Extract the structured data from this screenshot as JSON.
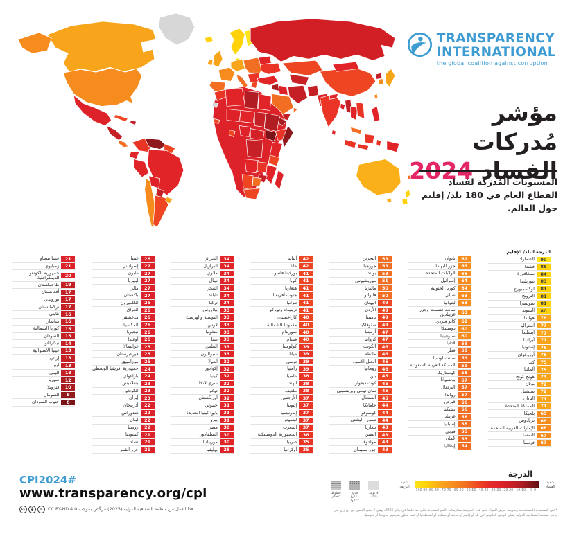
{
  "logo": {
    "line1": "TRANSPARENCY",
    "line2": "INTERNATIONAL",
    "tagline": "the global coalition against corruption",
    "brand_blue": "#3e9cd2"
  },
  "title": {
    "line1": "مؤشر مُدركات",
    "line2_word": "الفساد",
    "year": "2024",
    "year_color": "#e42566"
  },
  "subtitle": "المستويات المُدرَكة لفساد القطاع العام في 180 بلد/ إقليم حول العالم.",
  "list_header": {
    "score": "الدرجة",
    "country": "البلد/ الإقليم"
  },
  "columns": [
    [
      {
        "name": "الدنمارك",
        "score": 90
      },
      {
        "name": "فنلندا",
        "score": 88
      },
      {
        "name": "سنغافورة",
        "score": 84
      },
      {
        "name": "نيوزيلندا",
        "score": 83
      },
      {
        "name": "لوكسمبورج",
        "score": 81
      },
      {
        "name": "النرويج",
        "score": 81
      },
      {
        "name": "سويسرا",
        "score": 81
      },
      {
        "name": "السويد",
        "score": 80
      },
      {
        "name": "هولندا",
        "score": 78
      },
      {
        "name": "أستراليا",
        "score": 77
      },
      {
        "name": "آيسلندا",
        "score": 77
      },
      {
        "name": "أيرلندا",
        "score": 77
      },
      {
        "name": "إستونيا",
        "score": 76
      },
      {
        "name": "أوروغواي",
        "score": 76
      },
      {
        "name": "كندا",
        "score": 75
      },
      {
        "name": "ألمانيا",
        "score": 75
      },
      {
        "name": "هونج كونج",
        "score": 74
      },
      {
        "name": "بوتان",
        "score": 72
      },
      {
        "name": "سيشيل",
        "score": 72
      },
      {
        "name": "اليابان",
        "score": 71
      },
      {
        "name": "المملكة المتحدة",
        "score": 71
      },
      {
        "name": "بلجيكا",
        "score": 69
      },
      {
        "name": "بربادوس",
        "score": 68
      },
      {
        "name": "الإمارات العربية المتحدة",
        "score": 68
      },
      {
        "name": "النمسا",
        "score": 67
      },
      {
        "name": "فرنسا",
        "score": 67
      }
    ],
    [
      {
        "name": "تايوان",
        "score": 67
      },
      {
        "name": "جزر البهاما",
        "score": 65
      },
      {
        "name": "الولايات المتحدة",
        "score": 65
      },
      {
        "name": "إسرائيل",
        "score": 64
      },
      {
        "name": "كوريا الجنوبية",
        "score": 64
      },
      {
        "name": "شيلي",
        "score": 63
      },
      {
        "name": "ليتوانيا",
        "score": 63
      },
      {
        "name": "سانت فنسنت وجزر غرينادين",
        "score": 63
      },
      {
        "name": "كابو فيردي",
        "score": 62
      },
      {
        "name": "دومينيكا",
        "score": 60
      },
      {
        "name": "سلوفينيا",
        "score": 60
      },
      {
        "name": "لاتفيا",
        "score": 59
      },
      {
        "name": "قطر",
        "score": 59
      },
      {
        "name": "سانت لوسيا",
        "score": 59
      },
      {
        "name": "المملكة العربية السعودية",
        "score": 59
      },
      {
        "name": "كوستاريكا",
        "score": 58
      },
      {
        "name": "بوتسوانا",
        "score": 57
      },
      {
        "name": "البرتغال",
        "score": 57
      },
      {
        "name": "رواندا",
        "score": 57
      },
      {
        "name": "قبرص",
        "score": 56
      },
      {
        "name": "تشيكيا",
        "score": 56
      },
      {
        "name": "غرينادا",
        "score": 56
      },
      {
        "name": "إسبانيا",
        "score": 56
      },
      {
        "name": "فيجي",
        "score": 55
      },
      {
        "name": "عُمان",
        "score": 55
      },
      {
        "name": "إيطاليا",
        "score": 54
      }
    ],
    [
      {
        "name": "البحرين",
        "score": 53
      },
      {
        "name": "جورجيا",
        "score": 53
      },
      {
        "name": "بولندا",
        "score": 53
      },
      {
        "name": "موريشيوس",
        "score": 51
      },
      {
        "name": "ماليزيا",
        "score": 50
      },
      {
        "name": "فانواتو",
        "score": 50
      },
      {
        "name": "اليونان",
        "score": 49
      },
      {
        "name": "الأردن",
        "score": 49
      },
      {
        "name": "ناميبيا",
        "score": 49
      },
      {
        "name": "سلوفاكيا",
        "score": 49
      },
      {
        "name": "أرمينيا",
        "score": 47
      },
      {
        "name": "كرواتيا",
        "score": 47
      },
      {
        "name": "الكويت",
        "score": 46
      },
      {
        "name": "مالطة",
        "score": 46
      },
      {
        "name": "الجبل الأسود",
        "score": 46
      },
      {
        "name": "رومانيا",
        "score": 46
      },
      {
        "name": "بنن",
        "score": 45
      },
      {
        "name": "كوت ديفوار",
        "score": 45
      },
      {
        "name": "سان تومي وبرينسيبي",
        "score": 45
      },
      {
        "name": "السنغال",
        "score": 45
      },
      {
        "name": "جامايكا",
        "score": 44
      },
      {
        "name": "كوسوفو",
        "score": 44
      },
      {
        "name": "تيمور - ليشتي",
        "score": 44
      },
      {
        "name": "بلغاريا",
        "score": 43
      },
      {
        "name": "الصين",
        "score": 43
      },
      {
        "name": "مولدوفا",
        "score": 43
      },
      {
        "name": "جزر سليمان",
        "score": 43
      }
    ],
    [
      {
        "name": "ألبانيا",
        "score": 42
      },
      {
        "name": "غانا",
        "score": 42
      },
      {
        "name": "بوركينا فاسو",
        "score": 41
      },
      {
        "name": "كوبا",
        "score": 41
      },
      {
        "name": "هنغاريا",
        "score": 41
      },
      {
        "name": "جنوب أفريقيا",
        "score": 41
      },
      {
        "name": "تنزانيا",
        "score": 41
      },
      {
        "name": "ترينيداد وتوباغو",
        "score": 41
      },
      {
        "name": "كازاخستان",
        "score": 40
      },
      {
        "name": "مقدونيا الشمالية",
        "score": 40
      },
      {
        "name": "سورينام",
        "score": 40
      },
      {
        "name": "فيتنام",
        "score": 40
      },
      {
        "name": "كولومبيا",
        "score": 39
      },
      {
        "name": "غيانا",
        "score": 39
      },
      {
        "name": "تونس",
        "score": 39
      },
      {
        "name": "زامبيا",
        "score": 39
      },
      {
        "name": "غامبيا",
        "score": 38
      },
      {
        "name": "الهند",
        "score": 38
      },
      {
        "name": "ملديف",
        "score": 38
      },
      {
        "name": "الأرجنتين",
        "score": 37
      },
      {
        "name": "إثيوبيا",
        "score": 37
      },
      {
        "name": "إندونيسيا",
        "score": 37
      },
      {
        "name": "ليسوتو",
        "score": 37
      },
      {
        "name": "المغرب",
        "score": 37
      },
      {
        "name": "الجمهورية الدومينيكية",
        "score": 36
      },
      {
        "name": "صربيا",
        "score": 35
      },
      {
        "name": "أوكرانيا",
        "score": 35
      }
    ],
    [
      {
        "name": "الجزائر",
        "score": 34
      },
      {
        "name": "البرازيل",
        "score": 34
      },
      {
        "name": "ملاوي",
        "score": 34
      },
      {
        "name": "نيبال",
        "score": 34
      },
      {
        "name": "النيجر",
        "score": 34
      },
      {
        "name": "تايلند",
        "score": 34
      },
      {
        "name": "تركيا",
        "score": 34
      },
      {
        "name": "بيلاروس",
        "score": 33
      },
      {
        "name": "البوسنة والهرسك",
        "score": 33
      },
      {
        "name": "لاوس",
        "score": 33
      },
      {
        "name": "منغوليا",
        "score": 33
      },
      {
        "name": "بنما",
        "score": 33
      },
      {
        "name": "الفلبين",
        "score": 33
      },
      {
        "name": "سيراليون",
        "score": 33
      },
      {
        "name": "أنغولا",
        "score": 32
      },
      {
        "name": "إكوادور",
        "score": 32
      },
      {
        "name": "كينيا",
        "score": 32
      },
      {
        "name": "سري لانكا",
        "score": 32
      },
      {
        "name": "توغو",
        "score": 32
      },
      {
        "name": "أوزبكستان",
        "score": 32
      },
      {
        "name": "جيبوتي",
        "score": 31
      },
      {
        "name": "بابوا غينيا الجديدة",
        "score": 31
      },
      {
        "name": "بيرو",
        "score": 31
      },
      {
        "name": "مصر",
        "score": 30
      },
      {
        "name": "السلفادور",
        "score": 30
      },
      {
        "name": "موريتانيا",
        "score": 30
      },
      {
        "name": "بوليفيا",
        "score": 28
      }
    ],
    [
      {
        "name": "غينيا",
        "score": 28
      },
      {
        "name": "إسواتيني",
        "score": 27
      },
      {
        "name": "غابون",
        "score": 27
      },
      {
        "name": "ليبيريا",
        "score": 27
      },
      {
        "name": "مالي",
        "score": 27
      },
      {
        "name": "باكستان",
        "score": 27
      },
      {
        "name": "الكاميرون",
        "score": 26
      },
      {
        "name": "العراق",
        "score": 26
      },
      {
        "name": "مدغشقر",
        "score": 26
      },
      {
        "name": "المكسيك",
        "score": 26
      },
      {
        "name": "نيجيريا",
        "score": 26
      },
      {
        "name": "أوغندا",
        "score": 26
      },
      {
        "name": "غواتيمالا",
        "score": 25
      },
      {
        "name": "قيرغيزستان",
        "score": 25
      },
      {
        "name": "موزامبيق",
        "score": 25
      },
      {
        "name": "جمهورية أفريقيا الوسطى",
        "score": 24
      },
      {
        "name": "باراغواي",
        "score": 24
      },
      {
        "name": "بنغلاديش",
        "score": 23
      },
      {
        "name": "الكونغو",
        "score": 23
      },
      {
        "name": "إيران",
        "score": 23
      },
      {
        "name": "أذربيجان",
        "score": 22
      },
      {
        "name": "هندوراس",
        "score": 22
      },
      {
        "name": "لبنان",
        "score": 22
      },
      {
        "name": "روسيا",
        "score": 22
      },
      {
        "name": "كمبوديا",
        "score": 21
      },
      {
        "name": "تشاد",
        "score": 21
      },
      {
        "name": "جزر القمر",
        "score": 21
      }
    ],
    [
      {
        "name": "غينيا بيساو",
        "score": 21
      },
      {
        "name": "زمبابوي",
        "score": 21
      },
      {
        "name": "جمهورية الكونغو الديمقراطية",
        "score": 20
      },
      {
        "name": "طاجيكستان",
        "score": 19
      },
      {
        "name": "أفغانستان",
        "score": 17
      },
      {
        "name": "بوروندي",
        "score": 17
      },
      {
        "name": "تركمانستان",
        "score": 17
      },
      {
        "name": "هايتي",
        "score": 16
      },
      {
        "name": "ميانمار",
        "score": 16
      },
      {
        "name": "كوريا الشمالية",
        "score": 15
      },
      {
        "name": "السودان",
        "score": 15
      },
      {
        "name": "نيكاراغوا",
        "score": 14
      },
      {
        "name": "غينيا الاستوائية",
        "score": 13
      },
      {
        "name": "إريتريا",
        "score": 13
      },
      {
        "name": "ليبيا",
        "score": 13
      },
      {
        "name": "اليمن",
        "score": 13
      },
      {
        "name": "سوريا",
        "score": 12
      },
      {
        "name": "فنزويلا",
        "score": 10
      },
      {
        "name": "الصومال",
        "score": 9
      },
      {
        "name": "جنوب السودان",
        "score": 8
      }
    ]
  ],
  "score_colors": [
    {
      "min": 90,
      "bg": "#ffe419",
      "fg": "#3f3f3f"
    },
    {
      "min": 80,
      "bg": "#ffd20a",
      "fg": "#3f3f3f"
    },
    {
      "min": 70,
      "bg": "#f9a51c",
      "fg": "#ffffff"
    },
    {
      "min": 60,
      "bg": "#f68c1e",
      "fg": "#ffffff"
    },
    {
      "min": 50,
      "bg": "#f26e22",
      "fg": "#ffffff"
    },
    {
      "min": 40,
      "bg": "#ee4623",
      "fg": "#ffffff"
    },
    {
      "min": 35,
      "bg": "#ea3526",
      "fg": "#ffffff"
    },
    {
      "min": 30,
      "bg": "#e12428",
      "fg": "#ffffff"
    },
    {
      "min": 20,
      "bg": "#de2229",
      "fg": "#ffffff"
    },
    {
      "min": 13,
      "bg": "#c42026",
      "fg": "#ffffff"
    },
    {
      "min": 10,
      "bg": "#a81c22",
      "fg": "#ffffff"
    },
    {
      "min": 9,
      "bg": "#911a1e",
      "fg": "#ffffff"
    },
    {
      "min": 0,
      "bg": "#7b1418",
      "fg": "#ffffff"
    }
  ],
  "footer": {
    "hashtag": "CPI2024#",
    "url": "www.transparency.org/cpi",
    "license": "هذا العمل من منظمة الشفافية الدولية (2025) مُرخّص بموجب CC BY-ND 4.0"
  },
  "legend": {
    "title": "الدرجة",
    "clean_label_1": "شديد",
    "clean_label_2": "النزاهة",
    "corrupt_label_1": "شديد",
    "corrupt_label_2": "الفساد",
    "ticks": [
      "100-90",
      "89-80",
      "79-70",
      "69-60",
      "59-50",
      "49-40",
      "39-30",
      "29-20",
      "19-10",
      "9-0"
    ],
    "no_data": "لا توجد بيانات",
    "disputed": "حدود متنازع عليها*",
    "control": "خطوط تحكم*",
    "footnote": "* تتبع التسميات المستخدمة وطريقة عرض المواد على هذه الخريطة ممارسات الأمم المتحدة، على حد علمنا في يناير 2025، وهي لا تعني التعبير عن أي رأي من جانب منظمة الشفافية الدولية بشأن الوضع القانوني لأي بلد أو إقليم أو مدينة أو منطقة أو لسلطاتها أو فيما يتعلق بترسيم حدودها أو تخومها."
  }
}
